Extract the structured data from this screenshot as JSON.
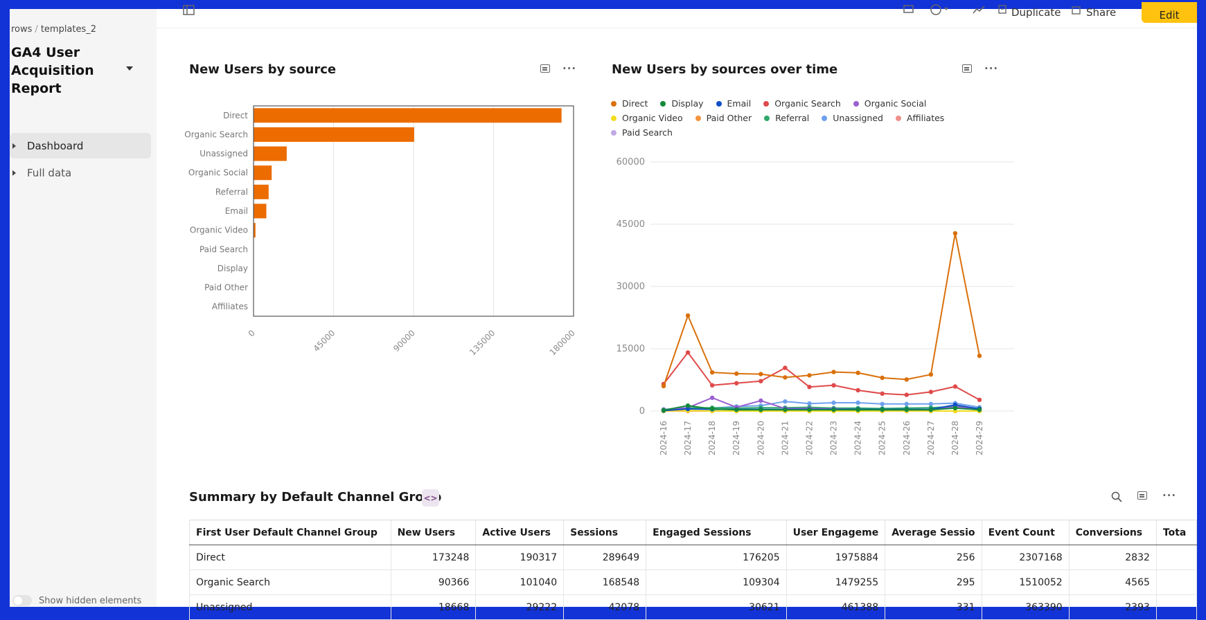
{
  "breadcrumb": {
    "root": "rows",
    "current": "templates_2"
  },
  "doc": {
    "title": "GA4 User Acquisition Report"
  },
  "nav": {
    "items": [
      {
        "label": "Dashboard",
        "active": true
      },
      {
        "label": "Full data",
        "active": false
      }
    ]
  },
  "footer": {
    "hidden_label": "Show hidden elements"
  },
  "toolbar": {
    "duplicate_label": "Duplicate",
    "share_label": "Share",
    "edit_label": "Edit"
  },
  "colors": {
    "accent": "#ffc20e",
    "bar": "#ec6c00",
    "series": {
      "Direct": "#d9700a",
      "Display": "#138a3a",
      "Email": "#0f4fc7",
      "Organic Search": "#e04a4a",
      "Organic Social": "#9a60d0",
      "Organic Video": "#f2dc1c",
      "Paid Other": "#f5923a",
      "Referral": "#2ea86a",
      "Unassigned": "#6fa0ef",
      "Affiliates": "#f0908a",
      "Paid Search": "#c0a8e6"
    }
  },
  "bar_chart": {
    "title": "New Users by source"
  },
  "line_chart": {
    "title": "New Users by sources over time"
  },
  "table": {
    "title": "Summary by Default Channel Group",
    "columns": [
      "First User Default Channel Group",
      "New Users",
      "Active Users",
      "Sessions",
      "Engaged Sessions",
      "User Engageme",
      "Average Sessio",
      "Event Count",
      "Conversions",
      "Tota"
    ],
    "rows": [
      [
        "Direct",
        "173248",
        "190317",
        "289649",
        "176205",
        "1975884",
        "256",
        "2307168",
        "2832",
        ""
      ],
      [
        "Organic Search",
        "90366",
        "101040",
        "168548",
        "109304",
        "1479255",
        "295",
        "1510052",
        "4565",
        ""
      ],
      [
        "Unassigned",
        "18668",
        "29222",
        "42078",
        "30621",
        "461388",
        "331",
        "363390",
        "2393",
        ""
      ]
    ]
  },
  "chart_data": [
    {
      "type": "bar",
      "orientation": "horizontal",
      "title": "New Users by source",
      "categories": [
        "Direct",
        "Organic Search",
        "Unassigned",
        "Organic Social",
        "Referral",
        "Email",
        "Organic Video",
        "Paid Search",
        "Display",
        "Paid Other",
        "Affiliates"
      ],
      "values": [
        173248,
        90366,
        18668,
        10200,
        8500,
        7200,
        1100,
        120,
        80,
        50,
        20
      ],
      "xlim": [
        0,
        180000
      ],
      "xticks": [
        "0",
        "45000",
        "90000",
        "135000",
        "180000"
      ],
      "grid": true
    },
    {
      "type": "line",
      "title": "New Users by sources over time",
      "x": [
        "2024-16",
        "2024-17",
        "2024-18",
        "2024-19",
        "2024-20",
        "2024-21",
        "2024-22",
        "2024-23",
        "2024-24",
        "2024-25",
        "2024-26",
        "2024-27",
        "2024-28",
        "2024-29"
      ],
      "ylim": [
        0,
        60000
      ],
      "yticks": [
        "0",
        "15000",
        "30000",
        "45000",
        "60000"
      ],
      "legend": "top",
      "grid": true,
      "series": [
        {
          "name": "Direct",
          "values": [
            6000,
            23000,
            9300,
            9000,
            8900,
            8100,
            8600,
            9400,
            9200,
            8000,
            7600,
            8800,
            42800,
            13300
          ]
        },
        {
          "name": "Display",
          "values": [
            200,
            1300,
            500,
            300,
            300,
            300,
            300,
            300,
            300,
            300,
            300,
            300,
            700,
            300
          ]
        },
        {
          "name": "Email",
          "values": [
            100,
            500,
            400,
            400,
            400,
            400,
            400,
            400,
            400,
            400,
            400,
            400,
            1500,
            500
          ]
        },
        {
          "name": "Organic Search",
          "values": [
            6500,
            14100,
            6200,
            6700,
            7200,
            10400,
            5800,
            6200,
            5000,
            4200,
            3900,
            4600,
            5900,
            2700
          ]
        },
        {
          "name": "Organic Social",
          "values": [
            300,
            800,
            3200,
            900,
            2500,
            600,
            600,
            500,
            400,
            300,
            300,
            300,
            1000,
            500
          ]
        },
        {
          "name": "Organic Video",
          "values": [
            0,
            100,
            0,
            0,
            0,
            0,
            0,
            0,
            0,
            0,
            0,
            0,
            0,
            0
          ]
        },
        {
          "name": "Paid Other",
          "values": [
            0,
            0,
            0,
            0,
            0,
            0,
            0,
            0,
            0,
            0,
            0,
            0,
            0,
            0
          ]
        },
        {
          "name": "Referral",
          "values": [
            300,
            700,
            800,
            700,
            800,
            800,
            900,
            700,
            700,
            600,
            700,
            800,
            1100,
            600
          ]
        },
        {
          "name": "Unassigned",
          "values": [
            400,
            800,
            700,
            1100,
            1300,
            2300,
            1800,
            2000,
            2000,
            1700,
            1700,
            1700,
            1900,
            900
          ]
        },
        {
          "name": "Affiliates",
          "values": [
            0,
            0,
            0,
            0,
            0,
            0,
            0,
            0,
            0,
            0,
            0,
            0,
            0,
            0
          ]
        },
        {
          "name": "Paid Search",
          "values": [
            0,
            0,
            0,
            0,
            0,
            0,
            0,
            0,
            0,
            0,
            0,
            0,
            0,
            0
          ]
        }
      ]
    }
  ]
}
